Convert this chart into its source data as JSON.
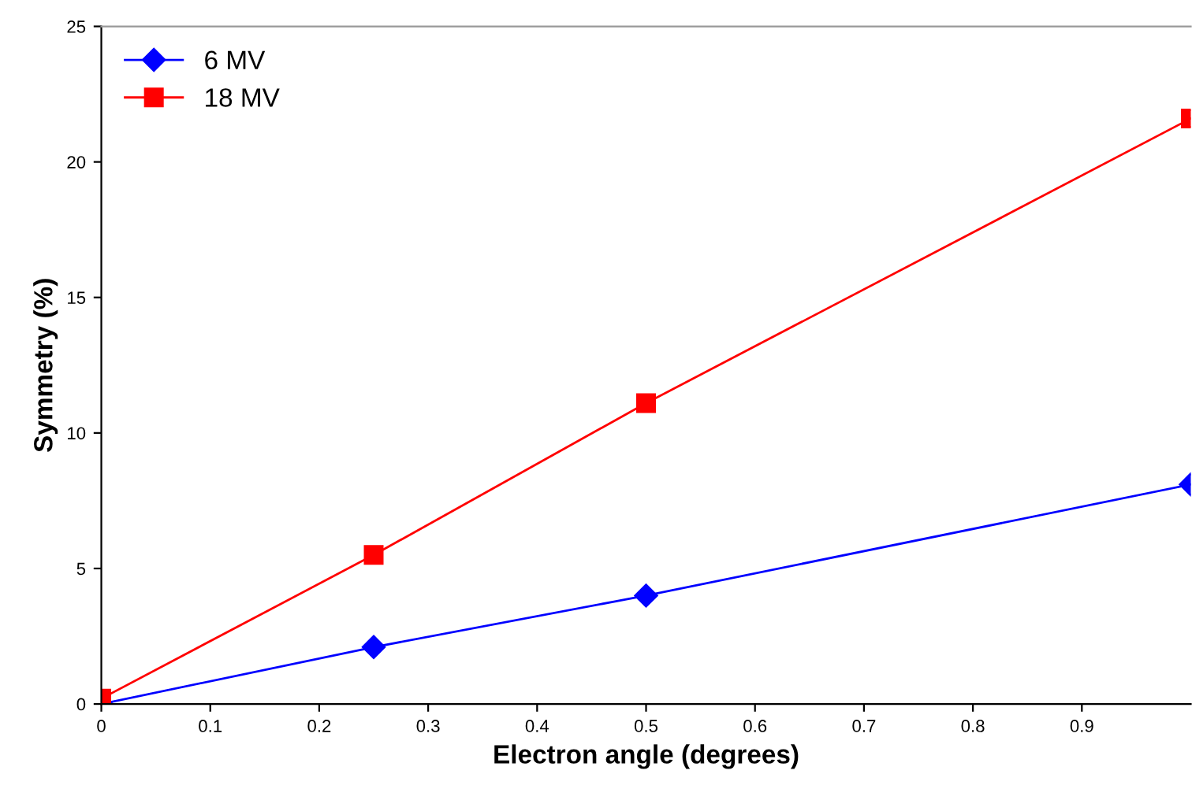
{
  "chart_data": {
    "type": "line",
    "xlabel": "Electron angle (degrees)",
    "ylabel": "Symmetry (%)",
    "x": [
      0,
      0.25,
      0.5,
      1
    ],
    "series": [
      {
        "name": "6 MV",
        "color": "#0000ff",
        "marker": "diamond",
        "values": [
          0,
          2.1,
          4.0,
          8.1
        ]
      },
      {
        "name": "18 MV",
        "color": "#ff0000",
        "marker": "square",
        "values": [
          0.2,
          5.5,
          11.1,
          21.6
        ]
      }
    ],
    "xlim": [
      0,
      1
    ],
    "ylim": [
      0,
      25
    ],
    "xticks": [
      0,
      0.1,
      0.2,
      0.3,
      0.4,
      0.5,
      0.6,
      0.7,
      0.8,
      0.9
    ],
    "yticks": [
      0,
      5,
      10,
      15,
      20,
      25
    ],
    "grid": false,
    "legend": "top left",
    "line_style": "solid"
  }
}
